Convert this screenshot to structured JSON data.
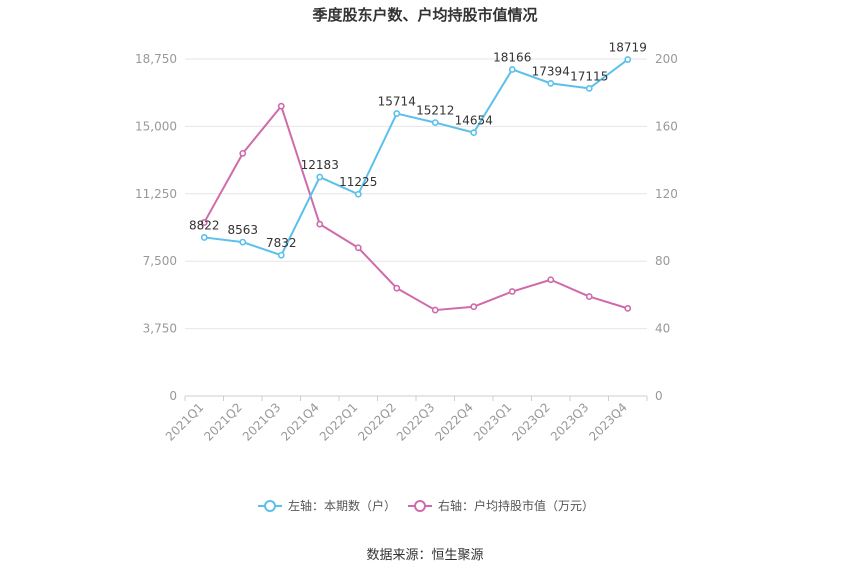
{
  "chart_data": {
    "type": "line",
    "title": "季度股东户数、户均持股市值情况",
    "categories": [
      "2021Q1",
      "2021Q2",
      "2021Q3",
      "2021Q4",
      "2022Q1",
      "2022Q2",
      "2022Q3",
      "2022Q4",
      "2023Q1",
      "2023Q2",
      "2023Q3",
      "2023Q4"
    ],
    "left_axis": {
      "ticks": [
        "0",
        "3,750",
        "7,500",
        "11,250",
        "15,000",
        "18,750"
      ],
      "min": 0,
      "max": 18750
    },
    "right_axis": {
      "ticks": [
        "0",
        "40",
        "80",
        "120",
        "160",
        "200"
      ],
      "min": 0,
      "max": 200
    },
    "series": [
      {
        "name": "左轴：本期数（户）",
        "axis": "left",
        "color": "#5bc0eb",
        "values": [
          8822,
          8563,
          7832,
          12183,
          11225,
          15714,
          15212,
          14654,
          18166,
          17394,
          17115,
          18719
        ],
        "labels": [
          "8822",
          "8563",
          "7832",
          "12183",
          "11225",
          "15714",
          "15212",
          "14654",
          "18166",
          "17394",
          "17115",
          "18719"
        ]
      },
      {
        "name": "右轴：户均持股市值（万元）",
        "axis": "right",
        "color": "#d06aaa",
        "values": [
          103,
          144,
          172,
          102,
          88,
          64,
          51,
          53,
          62,
          69,
          59,
          52
        ]
      }
    ],
    "grid": true,
    "legend_position": "bottom"
  },
  "footer": {
    "source": "数据来源：恒生聚源"
  }
}
